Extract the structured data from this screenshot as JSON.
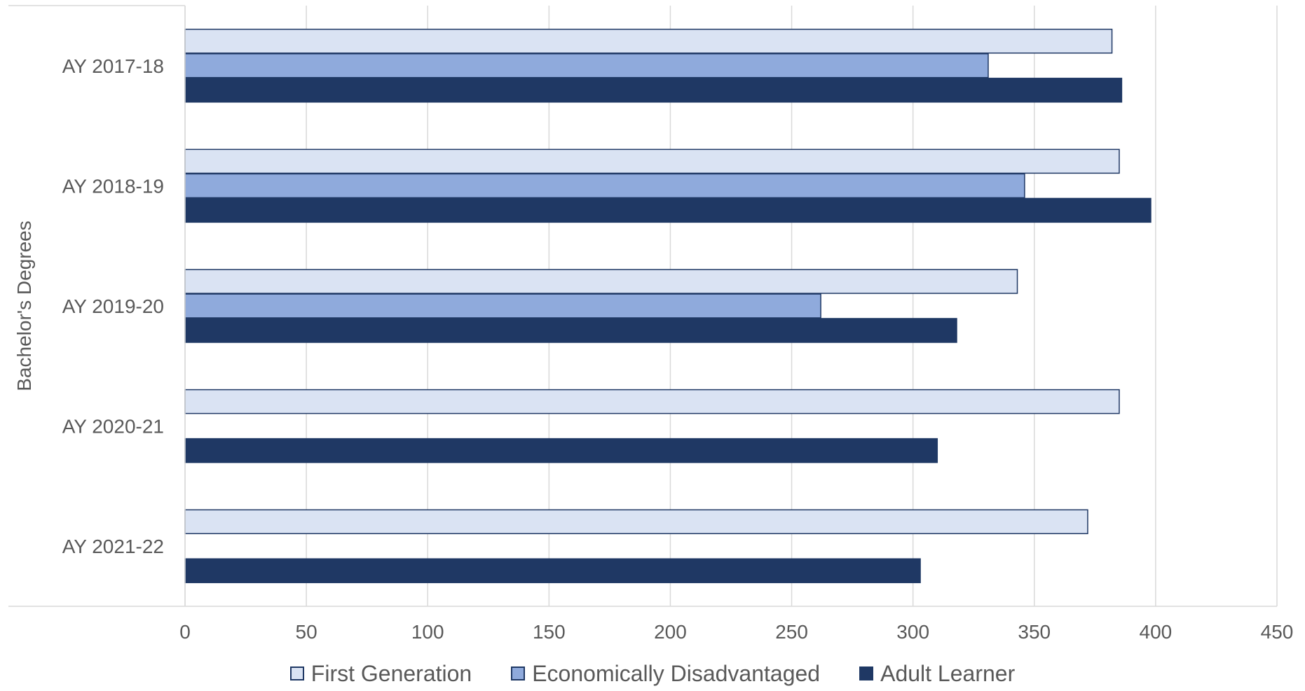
{
  "chart_data": {
    "type": "bar",
    "orientation": "horizontal",
    "title": "",
    "ylabel": "Bachelor's Degrees",
    "xlabel": "",
    "categories": [
      "AY 2017-18",
      "AY 2018-19",
      "AY 2019-20",
      "AY 2020-21",
      "AY 2021-22"
    ],
    "xlim": [
      0,
      450
    ],
    "x_ticks": [
      "0",
      "50",
      "100",
      "150",
      "200",
      "250",
      "300",
      "350",
      "400",
      "450"
    ],
    "grid": "vertical",
    "legend_position": "bottom",
    "series": [
      {
        "name": "First Generation",
        "color": "#dae3f3",
        "values": [
          382,
          385,
          343,
          385,
          372
        ]
      },
      {
        "name": "Economically Disadvantaged",
        "color": "#8faadc",
        "values": [
          331,
          346,
          262,
          null,
          null
        ]
      },
      {
        "name": "Adult Learner",
        "color": "#1f3864",
        "values": [
          386,
          398,
          318,
          310,
          303
        ]
      }
    ],
    "bar_outline_color": "#1f3864"
  }
}
